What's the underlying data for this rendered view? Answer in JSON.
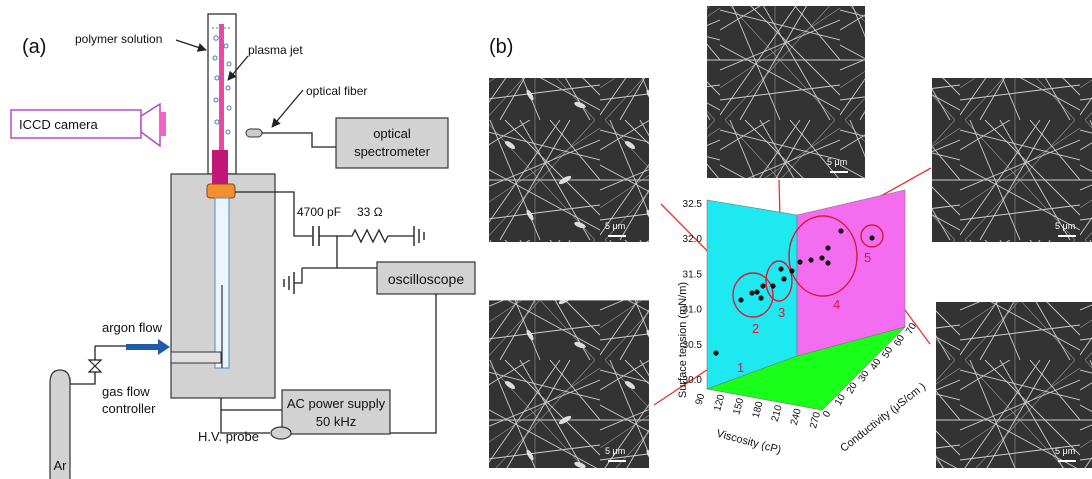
{
  "panel_a": {
    "tag": "(a)",
    "labels": {
      "polymer_solution": "polymer solution",
      "plasma_jet": "plasma jet",
      "optical_fiber": "optical fiber",
      "icc_camera": "ICCD camera",
      "optical_spectrometer_l1": "optical",
      "optical_spectrometer_l2": "spectrometer",
      "capacitor": "4700 pF",
      "resistor": "33 Ω",
      "oscilloscope": "oscilloscope",
      "argon_flow": "argon flow",
      "gas_flow_controller_l1": "gas flow",
      "gas_flow_controller_l2": "controller",
      "ar": "Ar",
      "ac_power_l1": "AC power supply",
      "ac_power_l2": "50 kHz",
      "hv_probe": "H.V. probe"
    }
  },
  "panel_b": {
    "tag": "(b)",
    "scale_bar": "5 μm",
    "chart": {
      "ylabel": "Surface tension (mN/m)",
      "xlabel": "Viscosity (cP)",
      "zlabel": "Conductivity (μS/cm )",
      "y_ticks": [
        "30.0",
        "30.5",
        "31.0",
        "31.5",
        "32.0",
        "32.5"
      ],
      "x_ticks": [
        "90",
        "120",
        "150",
        "180",
        "210",
        "240",
        "270"
      ],
      "z_ticks": [
        "0",
        "10",
        "20",
        "30",
        "40",
        "50",
        "60",
        "70"
      ],
      "cluster_labels": [
        "1",
        "2",
        "3",
        "4",
        "5"
      ]
    }
  },
  "colors": {
    "wall_cyan": "#1ee8f0",
    "wall_magenta": "#f46cf0",
    "floor_green": "#1aff1a",
    "cluster_outline": "#d81b3a",
    "arrow": "#e8322f",
    "camera": "#b040c8",
    "jet": "#e8188c",
    "argon_arrow": "#1f5ba8"
  }
}
